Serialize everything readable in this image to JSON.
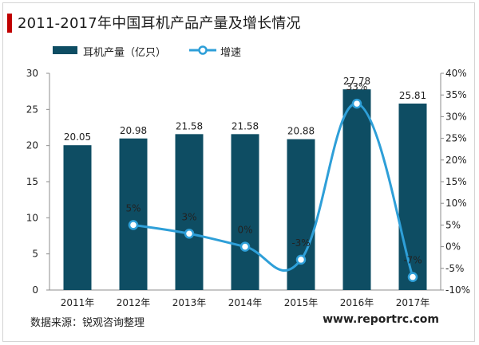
{
  "title": "2011-2017年中国耳机产品产量及增长情况",
  "source": "数据来源：锐观咨询整理",
  "website": "www.reportrc.com",
  "colors": {
    "bar": "#0e4d63",
    "line": "#2e9fd8",
    "accent": "#c00000"
  },
  "chart_data": {
    "type": "bar",
    "categories": [
      "2011年",
      "2012年",
      "2013年",
      "2014年",
      "2015年",
      "2016年",
      "2017年"
    ],
    "series": [
      {
        "name": "耳机产量（亿只）",
        "type": "bar",
        "axis": "left",
        "values": [
          20.05,
          20.98,
          21.58,
          21.58,
          20.88,
          27.78,
          25.81
        ],
        "labels": [
          "20.05",
          "20.98",
          "21.58",
          "21.58",
          "20.88",
          "27.78",
          "25.81"
        ]
      },
      {
        "name": "增速",
        "type": "line",
        "axis": "right",
        "values": [
          null,
          5,
          3,
          0,
          -3,
          33,
          -7
        ],
        "labels": [
          "",
          "5%",
          "3%",
          "0%",
          "-3%",
          "33%",
          "-7%"
        ]
      }
    ],
    "y_left": {
      "min": 0,
      "max": 30,
      "ticks": [
        "0",
        "5",
        "10",
        "15",
        "20",
        "25",
        "30"
      ]
    },
    "y_right": {
      "min": -10,
      "max": 40,
      "ticks": [
        "-10%",
        "-5%",
        "0%",
        "5%",
        "10%",
        "15%",
        "20%",
        "25%",
        "30%",
        "35%",
        "40%"
      ]
    },
    "grid": false,
    "legend_position": "top-left"
  }
}
